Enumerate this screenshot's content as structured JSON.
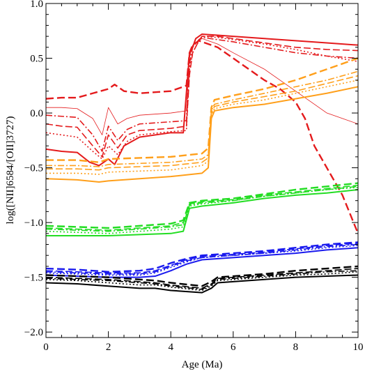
{
  "chart_data": {
    "type": "line",
    "xlabel": "Age (Ma)",
    "ylabel": "log([NII]6584/[OII]3727)",
    "xlim": [
      0,
      10
    ],
    "ylim": [
      -2.05,
      1.0
    ],
    "x_ticks": [
      0,
      2,
      4,
      6,
      8,
      10
    ],
    "x_tick_labels": [
      "0",
      "2",
      "4",
      "6",
      "8",
      "10"
    ],
    "y_ticks": [
      -2.0,
      -1.5,
      -1.0,
      -0.5,
      0.0,
      0.5,
      1.0
    ],
    "y_tick_labels": [
      "−2.0",
      "−1.5",
      "−1.0",
      "−0.5",
      "0.0",
      "0.5",
      "1.0"
    ],
    "grid": false,
    "series": [
      {
        "color": "#e41a1c",
        "dash": "",
        "width": 2.0,
        "x": [
          0,
          0.5,
          1.0,
          1.4,
          1.7,
          2.0,
          2.2,
          2.5,
          3.0,
          4.0,
          4.4,
          4.6,
          4.7,
          4.8,
          5.0,
          5.5,
          6.0,
          7.0,
          8.0,
          9.0,
          10.0
        ],
        "y": [
          -0.33,
          -0.35,
          -0.36,
          -0.45,
          -0.48,
          -0.42,
          -0.47,
          -0.3,
          -0.22,
          -0.18,
          -0.18,
          0.55,
          0.6,
          0.68,
          0.72,
          0.71,
          0.7,
          0.68,
          0.66,
          0.64,
          0.62
        ]
      },
      {
        "color": "#e41a1c",
        "dash": "2,3",
        "width": 1.6,
        "x": [
          0,
          0.5,
          1.0,
          1.5,
          1.8,
          2.0,
          2.3,
          2.6,
          3.0,
          4.0,
          4.5,
          4.6,
          4.7,
          4.9,
          5.0,
          5.5,
          6.0,
          7.0,
          8.0,
          9.0,
          10.0
        ],
        "y": [
          -0.18,
          -0.2,
          -0.22,
          -0.35,
          -0.42,
          -0.3,
          -0.38,
          -0.26,
          -0.2,
          -0.17,
          -0.16,
          0.4,
          0.55,
          0.66,
          0.7,
          0.69,
          0.67,
          0.63,
          0.58,
          0.52,
          0.47
        ]
      },
      {
        "color": "#e41a1c",
        "dash": "10,4",
        "width": 1.6,
        "x": [
          0,
          0.5,
          1.0,
          1.5,
          1.8,
          2.0,
          2.3,
          2.6,
          3.0,
          4.0,
          4.5,
          4.6,
          4.7,
          4.9,
          5.0,
          5.5,
          6.0,
          7.0,
          8.0,
          9.0,
          10.0
        ],
        "y": [
          -0.1,
          -0.12,
          -0.13,
          -0.3,
          -0.4,
          -0.2,
          -0.32,
          -0.2,
          -0.16,
          -0.14,
          -0.12,
          0.35,
          0.55,
          0.66,
          0.7,
          0.7,
          0.68,
          0.64,
          0.6,
          0.58,
          0.57
        ]
      },
      {
        "color": "#e41a1c",
        "dash": "9,3,2,3",
        "width": 1.6,
        "x": [
          0,
          0.5,
          1.0,
          1.5,
          1.8,
          2.0,
          2.3,
          2.6,
          3.0,
          4.0,
          4.5,
          4.6,
          4.7,
          4.9,
          5.0,
          5.5,
          6.0,
          7.0,
          8.0,
          9.0,
          10.0
        ],
        "y": [
          -0.02,
          -0.03,
          -0.04,
          -0.2,
          -0.35,
          -0.12,
          -0.25,
          -0.15,
          -0.1,
          -0.08,
          -0.07,
          0.45,
          0.6,
          0.67,
          0.69,
          0.67,
          0.65,
          0.6,
          0.55,
          0.52,
          0.5
        ]
      },
      {
        "color": "#e41a1c",
        "dash": "",
        "width": 0.8,
        "x": [
          0,
          0.5,
          1.0,
          1.5,
          1.8,
          2.0,
          2.3,
          2.6,
          3.0,
          4.0,
          4.5,
          4.6,
          4.7,
          4.9,
          5.0,
          5.5,
          6.0,
          7.0,
          7.5,
          8.0,
          8.5,
          9.0,
          9.5,
          10.0
        ],
        "y": [
          0.05,
          0.05,
          0.04,
          -0.05,
          -0.2,
          0.05,
          -0.1,
          -0.05,
          -0.02,
          0.0,
          0.02,
          0.5,
          0.62,
          0.66,
          0.68,
          0.63,
          0.55,
          0.4,
          0.3,
          0.2,
          0.1,
          0.0,
          -0.05,
          -0.1
        ]
      },
      {
        "color": "#e41a1c",
        "dash": "11,5",
        "width": 2.4,
        "x": [
          0,
          0.5,
          1.0,
          1.5,
          2.0,
          2.2,
          2.5,
          3.0,
          4.0,
          4.5,
          4.6,
          4.7,
          4.9,
          5.0,
          5.5,
          6.0,
          6.5,
          7.0,
          7.5,
          8.0,
          8.3,
          8.6,
          9.0,
          9.5,
          10.0
        ],
        "y": [
          0.13,
          0.14,
          0.14,
          0.18,
          0.22,
          0.26,
          0.2,
          0.18,
          0.2,
          0.25,
          0.55,
          0.62,
          0.66,
          0.65,
          0.6,
          0.5,
          0.4,
          0.3,
          0.22,
          0.1,
          -0.05,
          -0.3,
          -0.5,
          -0.75,
          -1.1
        ]
      },
      {
        "color": "#ff9f1a",
        "dash": "",
        "width": 2.0,
        "x": [
          0,
          1.0,
          1.7,
          2.0,
          3.0,
          4.0,
          5.0,
          5.2,
          5.3,
          5.4,
          6.0,
          7.0,
          8.0,
          9.0,
          10.0
        ],
        "y": [
          -0.6,
          -0.61,
          -0.63,
          -0.62,
          -0.6,
          -0.58,
          -0.55,
          -0.5,
          -0.05,
          0.02,
          0.05,
          0.08,
          0.13,
          0.18,
          0.24
        ]
      },
      {
        "color": "#ff9f1a",
        "dash": "2,3",
        "width": 1.6,
        "x": [
          0,
          1.0,
          1.7,
          2.0,
          3.0,
          4.0,
          5.0,
          5.2,
          5.3,
          5.4,
          6.0,
          7.0,
          8.0,
          9.0,
          10.0
        ],
        "y": [
          -0.55,
          -0.55,
          -0.56,
          -0.54,
          -0.53,
          -0.52,
          -0.48,
          -0.44,
          -0.02,
          0.04,
          0.08,
          0.12,
          0.18,
          0.24,
          0.3
        ]
      },
      {
        "color": "#ff9f1a",
        "dash": "10,4",
        "width": 1.6,
        "x": [
          0,
          1.0,
          1.7,
          2.0,
          3.0,
          4.0,
          5.0,
          5.2,
          5.3,
          5.4,
          6.0,
          7.0,
          8.0,
          9.0,
          10.0
        ],
        "y": [
          -0.51,
          -0.51,
          -0.52,
          -0.5,
          -0.49,
          -0.48,
          -0.45,
          -0.41,
          0.0,
          0.06,
          0.1,
          0.15,
          0.2,
          0.27,
          0.34
        ]
      },
      {
        "color": "#ff9f1a",
        "dash": "9,3,2,3",
        "width": 1.6,
        "x": [
          0,
          1.0,
          1.7,
          2.0,
          3.0,
          4.0,
          5.0,
          5.2,
          5.3,
          5.4,
          6.0,
          7.0,
          8.0,
          9.0,
          10.0
        ],
        "y": [
          -0.48,
          -0.48,
          -0.49,
          -0.47,
          -0.46,
          -0.45,
          -0.42,
          -0.38,
          0.02,
          0.08,
          0.12,
          0.18,
          0.24,
          0.3,
          0.38
        ]
      },
      {
        "color": "#ff9f1a",
        "dash": "11,5",
        "width": 2.4,
        "x": [
          0,
          1.0,
          1.7,
          2.0,
          3.0,
          4.0,
          5.0,
          5.2,
          5.3,
          5.4,
          6.0,
          7.0,
          8.0,
          9.0,
          10.0
        ],
        "y": [
          -0.43,
          -0.43,
          -0.45,
          -0.42,
          -0.41,
          -0.4,
          -0.37,
          -0.32,
          0.05,
          0.12,
          0.16,
          0.22,
          0.3,
          0.4,
          0.5
        ]
      },
      {
        "color": "#22dd22",
        "dash": "",
        "width": 2.0,
        "x": [
          0,
          1.0,
          2.0,
          3.0,
          4.0,
          4.4,
          4.6,
          5.0,
          6.0,
          7.0,
          8.0,
          9.0,
          10.0
        ],
        "y": [
          -1.12,
          -1.12,
          -1.12,
          -1.11,
          -1.1,
          -1.08,
          -0.87,
          -0.85,
          -0.82,
          -0.78,
          -0.75,
          -0.73,
          -0.7
        ]
      },
      {
        "color": "#22dd22",
        "dash": "2,3",
        "width": 1.6,
        "x": [
          0,
          1.0,
          2.0,
          3.0,
          4.0,
          4.4,
          4.6,
          5.0,
          6.0,
          7.0,
          8.0,
          9.0,
          10.0
        ],
        "y": [
          -1.08,
          -1.09,
          -1.1,
          -1.08,
          -1.06,
          -1.04,
          -0.85,
          -0.83,
          -0.8,
          -0.76,
          -0.73,
          -0.7,
          -0.68
        ]
      },
      {
        "color": "#22dd22",
        "dash": "10,4",
        "width": 1.6,
        "x": [
          0,
          1.0,
          2.0,
          3.0,
          4.0,
          4.4,
          4.6,
          5.0,
          6.0,
          7.0,
          8.0,
          9.0,
          10.0
        ],
        "y": [
          -1.05,
          -1.06,
          -1.07,
          -1.05,
          -1.03,
          -1.0,
          -0.83,
          -0.81,
          -0.79,
          -0.75,
          -0.72,
          -0.69,
          -0.66
        ]
      },
      {
        "color": "#22dd22",
        "dash": "9,3,2,3",
        "width": 1.6,
        "x": [
          0,
          1.0,
          2.0,
          3.0,
          4.0,
          4.4,
          4.6,
          5.0,
          6.0,
          7.0,
          8.0,
          9.0,
          10.0
        ],
        "y": [
          -1.06,
          -1.07,
          -1.08,
          -1.06,
          -1.04,
          -1.02,
          -0.84,
          -0.82,
          -0.8,
          -0.76,
          -0.73,
          -0.7,
          -0.67
        ]
      },
      {
        "color": "#22dd22",
        "dash": "11,5",
        "width": 2.4,
        "x": [
          0,
          1.0,
          2.0,
          3.0,
          4.0,
          4.4,
          4.6,
          5.0,
          6.0,
          7.0,
          8.0,
          9.0,
          10.0
        ],
        "y": [
          -1.03,
          -1.04,
          -1.05,
          -1.03,
          -1.01,
          -0.98,
          -0.82,
          -0.8,
          -0.78,
          -0.74,
          -0.7,
          -0.67,
          -0.64
        ]
      },
      {
        "color": "#1a1aee",
        "dash": "",
        "width": 2.0,
        "x": [
          0,
          1.0,
          2.0,
          3.0,
          3.5,
          4.0,
          4.5,
          5.0,
          6.0,
          7.0,
          8.0,
          9.0,
          10.0
        ],
        "y": [
          -1.48,
          -1.49,
          -1.5,
          -1.5,
          -1.49,
          -1.44,
          -1.38,
          -1.34,
          -1.32,
          -1.3,
          -1.28,
          -1.25,
          -1.23
        ]
      },
      {
        "color": "#1a1aee",
        "dash": "2,3",
        "width": 1.6,
        "x": [
          0,
          1.0,
          2.0,
          3.0,
          3.5,
          4.0,
          4.5,
          5.0,
          6.0,
          7.0,
          8.0,
          9.0,
          10.0
        ],
        "y": [
          -1.46,
          -1.47,
          -1.48,
          -1.48,
          -1.46,
          -1.41,
          -1.36,
          -1.32,
          -1.3,
          -1.28,
          -1.26,
          -1.23,
          -1.21
        ]
      },
      {
        "color": "#1a1aee",
        "dash": "10,4",
        "width": 1.6,
        "x": [
          0,
          1.0,
          2.0,
          3.0,
          3.5,
          4.0,
          4.5,
          5.0,
          6.0,
          7.0,
          8.0,
          9.0,
          10.0
        ],
        "y": [
          -1.44,
          -1.45,
          -1.46,
          -1.46,
          -1.44,
          -1.39,
          -1.34,
          -1.31,
          -1.29,
          -1.27,
          -1.24,
          -1.21,
          -1.19
        ]
      },
      {
        "color": "#1a1aee",
        "dash": "9,3,2,3",
        "width": 1.6,
        "x": [
          0,
          1.0,
          2.0,
          3.0,
          3.5,
          4.0,
          4.5,
          5.0,
          6.0,
          7.0,
          8.0,
          9.0,
          10.0
        ],
        "y": [
          -1.45,
          -1.46,
          -1.47,
          -1.47,
          -1.45,
          -1.4,
          -1.35,
          -1.32,
          -1.3,
          -1.28,
          -1.25,
          -1.22,
          -1.2
        ]
      },
      {
        "color": "#1a1aee",
        "dash": "11,5",
        "width": 2.4,
        "x": [
          0,
          1.0,
          2.0,
          3.0,
          3.5,
          4.0,
          4.5,
          5.0,
          6.0,
          7.0,
          8.0,
          9.0,
          10.0
        ],
        "y": [
          -1.42,
          -1.43,
          -1.45,
          -1.44,
          -1.42,
          -1.37,
          -1.33,
          -1.3,
          -1.28,
          -1.26,
          -1.23,
          -1.2,
          -1.18
        ]
      },
      {
        "color": "#000000",
        "dash": "",
        "width": 2.0,
        "x": [
          0,
          1.0,
          2.0,
          3.0,
          3.5,
          4.0,
          5.0,
          5.3,
          5.5,
          6.0,
          7.0,
          8.0,
          9.0,
          10.0
        ],
        "y": [
          -1.55,
          -1.56,
          -1.58,
          -1.6,
          -1.6,
          -1.62,
          -1.64,
          -1.6,
          -1.55,
          -1.54,
          -1.52,
          -1.5,
          -1.49,
          -1.48
        ]
      },
      {
        "color": "#000000",
        "dash": "2,3",
        "width": 1.6,
        "x": [
          0,
          1.0,
          2.0,
          3.0,
          3.5,
          4.0,
          5.0,
          5.3,
          5.5,
          6.0,
          7.0,
          8.0,
          9.0,
          10.0
        ],
        "y": [
          -1.52,
          -1.53,
          -1.55,
          -1.57,
          -1.57,
          -1.59,
          -1.62,
          -1.58,
          -1.53,
          -1.52,
          -1.5,
          -1.48,
          -1.47,
          -1.45
        ]
      },
      {
        "color": "#000000",
        "dash": "10,4",
        "width": 1.6,
        "x": [
          0,
          1.0,
          2.0,
          3.0,
          3.5,
          4.0,
          5.0,
          5.3,
          5.5,
          6.0,
          7.0,
          8.0,
          9.0,
          10.0
        ],
        "y": [
          -1.5,
          -1.51,
          -1.52,
          -1.54,
          -1.55,
          -1.57,
          -1.6,
          -1.56,
          -1.51,
          -1.5,
          -1.48,
          -1.46,
          -1.44,
          -1.42
        ]
      },
      {
        "color": "#000000",
        "dash": "9,3,2,3",
        "width": 1.6,
        "x": [
          0,
          1.0,
          2.0,
          3.0,
          3.5,
          4.0,
          5.0,
          5.3,
          5.5,
          6.0,
          7.0,
          8.0,
          9.0,
          10.0
        ],
        "y": [
          -1.51,
          -1.52,
          -1.53,
          -1.55,
          -1.56,
          -1.58,
          -1.61,
          -1.57,
          -1.52,
          -1.51,
          -1.49,
          -1.47,
          -1.45,
          -1.44
        ]
      },
      {
        "color": "#000000",
        "dash": "11,5",
        "width": 2.4,
        "x": [
          0,
          1.0,
          2.0,
          3.0,
          3.5,
          4.0,
          5.0,
          5.3,
          5.5,
          6.0,
          7.0,
          8.0,
          9.0,
          10.0
        ],
        "y": [
          -1.48,
          -1.49,
          -1.5,
          -1.52,
          -1.53,
          -1.55,
          -1.58,
          -1.54,
          -1.5,
          -1.49,
          -1.47,
          -1.44,
          -1.42,
          -1.4
        ]
      }
    ]
  }
}
